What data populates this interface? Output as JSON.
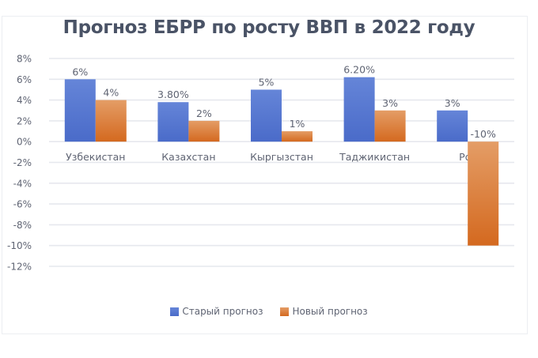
{
  "chart_data": {
    "type": "bar",
    "title": "Прогноз ЕБРР по росту ВВП в 2022 году",
    "categories": [
      "Узбекистан",
      "Казахстан",
      "Кыргызстан",
      "Таджикистан",
      "Рос"
    ],
    "series": [
      {
        "name": "Старый прогноз",
        "color": "#4a6bc9",
        "color_light": "#6585d8",
        "values": [
          6,
          3.8,
          5,
          6.2,
          3
        ],
        "labels": [
          "6%",
          "3.80%",
          "5%",
          "6.20%",
          "3%"
        ]
      },
      {
        "name": "Новый прогноз",
        "color": "#d4691f",
        "color_light": "#e49d66",
        "values": [
          4,
          2,
          1,
          3,
          -10
        ],
        "labels": [
          "4%",
          "2%",
          "1%",
          "3%",
          "-10%"
        ]
      }
    ],
    "ylim": [
      -12,
      8
    ],
    "yticks": [
      8,
      6,
      4,
      2,
      0,
      -2,
      -4,
      -6,
      -8,
      -10,
      -12
    ],
    "ytick_labels": [
      "8%",
      "6%",
      "4%",
      "2%",
      "0%",
      "-2%",
      "-4%",
      "-6%",
      "-8%",
      "-10%",
      "-12%"
    ],
    "xlabel": "",
    "ylabel": "",
    "grid": true,
    "legend": "bottom"
  }
}
